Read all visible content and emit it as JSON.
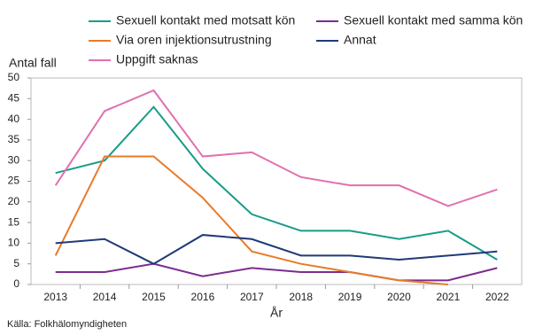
{
  "chart_data": {
    "type": "line",
    "y_label": "Antal fall",
    "x_label": "År",
    "source": "Källa: Folkhälomyndigheten",
    "categories": [
      "2013",
      "2014",
      "2015",
      "2016",
      "2017",
      "2018",
      "2019",
      "2020",
      "2021",
      "2022"
    ],
    "series": [
      {
        "name": "Sexuell kontakt med motsatt kön",
        "color": "#1a9c87",
        "values": [
          27,
          30,
          43,
          28,
          17,
          13,
          13,
          11,
          13,
          6
        ]
      },
      {
        "name": "Sexuell kontakt med samma kön",
        "color": "#7b2d8e",
        "values": [
          3,
          3,
          5,
          2,
          4,
          3,
          3,
          1,
          1,
          4
        ]
      },
      {
        "name": "Via oren injektionsutrustning",
        "color": "#e87b2c",
        "values": [
          7,
          31,
          31,
          21,
          8,
          5,
          3,
          1,
          0,
          null
        ]
      },
      {
        "name": "Annat",
        "color": "#1f3a78",
        "values": [
          10,
          11,
          5,
          12,
          11,
          7,
          7,
          6,
          7,
          8
        ]
      },
      {
        "name": "Uppgift saknas",
        "color": "#e070b0",
        "values": [
          24,
          42,
          47,
          31,
          32,
          26,
          24,
          24,
          19,
          23
        ]
      }
    ],
    "ylim": [
      0,
      50
    ],
    "yticks": [
      0,
      5,
      10,
      15,
      20,
      25,
      30,
      35,
      40,
      45,
      50
    ]
  }
}
